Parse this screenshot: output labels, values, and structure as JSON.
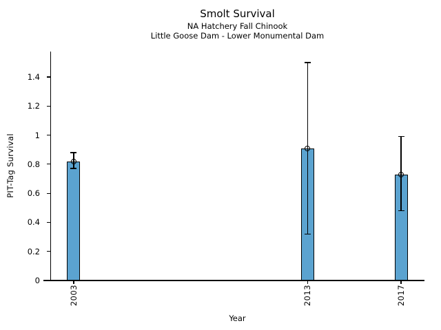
{
  "chart_data": {
    "type": "bar",
    "title": "Smolt Survival",
    "subtitle1": "NA Hatchery Fall Chinook",
    "subtitle2": "Little Goose Dam - Lower Monumental Dam",
    "xlabel": "Year",
    "ylabel": "PIT-Tag Survival",
    "categories": [
      "2003",
      "2013",
      "2017"
    ],
    "x": [
      2003,
      2013,
      2017
    ],
    "values": [
      0.82,
      0.91,
      0.73
    ],
    "error_low": [
      0.77,
      0.32,
      0.48
    ],
    "error_high": [
      0.88,
      1.5,
      0.99
    ],
    "yticks": [
      0,
      0.2,
      0.4,
      0.6,
      0.8,
      1,
      1.2,
      1.4
    ],
    "xlim": [
      2002,
      2018
    ],
    "ylim": [
      0,
      1.575
    ],
    "grid": false,
    "legend": null,
    "bar_color": "#5ba3d0",
    "bar_edge_color": "#000000",
    "errorbar_color": "#000000",
    "marker": "open-circle"
  }
}
